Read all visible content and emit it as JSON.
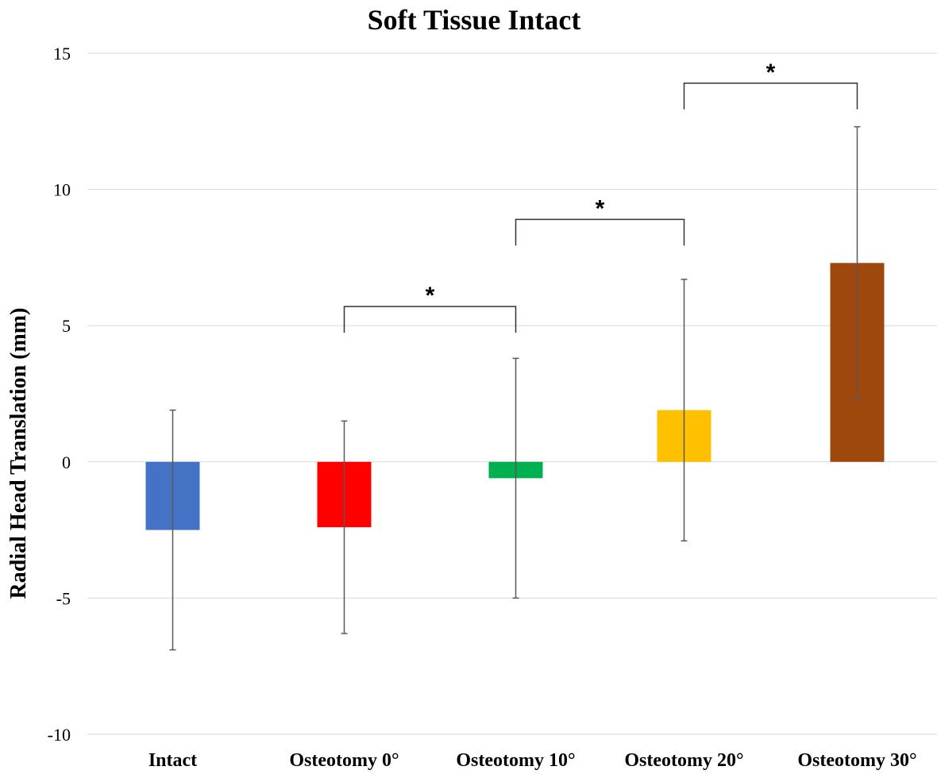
{
  "chart_data": {
    "type": "bar",
    "title": "Soft Tissue Intact",
    "ylabel": "Radial Head Translation (mm)",
    "xlabel": "",
    "ylim": [
      -10,
      15
    ],
    "yticks": [
      15,
      10,
      5,
      0,
      -5,
      -10
    ],
    "grid": true,
    "categories": [
      "Intact",
      "Osteotomy 0°",
      "Osteotomy 10°",
      "Osteotomy 20°",
      "Osteotomy 30°"
    ],
    "values": [
      -2.5,
      -2.4,
      -0.6,
      1.9,
      7.3
    ],
    "error_upper": [
      1.9,
      1.5,
      3.8,
      6.7,
      12.3
    ],
    "error_lower": [
      -6.9,
      -6.3,
      -5.0,
      -2.9,
      2.3
    ],
    "colors": [
      "#4472C4",
      "#FF0000",
      "#00B050",
      "#FFC000",
      "#9E480E"
    ],
    "significance": [
      {
        "from": 1,
        "to": 2,
        "label": "*",
        "level": 5.7
      },
      {
        "from": 2,
        "to": 3,
        "label": "*",
        "level": 8.9
      },
      {
        "from": 3,
        "to": 4,
        "label": "*",
        "level": 13.9
      }
    ]
  }
}
